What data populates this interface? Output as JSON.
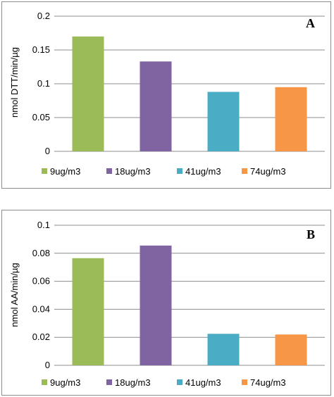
{
  "chart_data": [
    {
      "type": "bar",
      "panel_label": "A",
      "ylabel": "nmol DTT/min/µg",
      "ylim": [
        0,
        0.2
      ],
      "yticks": [
        "0",
        "0.05",
        "0.1",
        "0.15",
        "0.2"
      ],
      "ytick_values": [
        0,
        0.05,
        0.1,
        0.15,
        0.2
      ],
      "grid": true,
      "legend_position": "bottom",
      "categories": [
        "9ug/m3",
        "18ug/m3",
        "41ug/m3",
        "74ug/m3"
      ],
      "values": [
        0.17,
        0.133,
        0.088,
        0.095
      ],
      "colors": [
        "#9bbb59",
        "#8064a2",
        "#4bacc6",
        "#f79646"
      ]
    },
    {
      "type": "bar",
      "panel_label": "B",
      "ylabel": "nmol AA/min/µg",
      "ylim": [
        0,
        0.1
      ],
      "yticks": [
        "0",
        "0.02",
        "0.04",
        "0.06",
        "0.08",
        "0.1"
      ],
      "ytick_values": [
        0,
        0.02,
        0.04,
        0.06,
        0.08,
        0.1
      ],
      "grid": true,
      "legend_position": "bottom",
      "categories": [
        "9ug/m3",
        "18ug/m3",
        "41ug/m3",
        "74ug/m3"
      ],
      "values": [
        0.0765,
        0.0855,
        0.0225,
        0.022
      ],
      "colors": [
        "#9bbb59",
        "#8064a2",
        "#4bacc6",
        "#f79646"
      ]
    }
  ]
}
